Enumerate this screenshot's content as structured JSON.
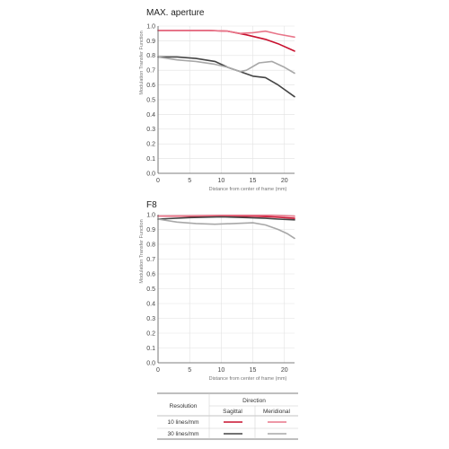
{
  "chart_data": [
    {
      "type": "line",
      "title": "MAX. aperture",
      "xlabel": "Distance from center of frame (mm)",
      "ylabel": "Modulation Transfer Function",
      "xlim": [
        0,
        21.6
      ],
      "ylim": [
        0,
        1.0
      ],
      "xticks": [
        0,
        5,
        10,
        15,
        20
      ],
      "yticks": [
        0,
        0.1,
        0.2,
        0.3,
        0.4,
        0.5,
        0.6,
        0.7,
        0.8,
        0.9,
        1.0
      ],
      "grid": true,
      "series": [
        {
          "key": "10_sagittal",
          "color": "#c8102e",
          "x": [
            0,
            4,
            8,
            11,
            14,
            17,
            19,
            21.6
          ],
          "y": [
            0.97,
            0.97,
            0.97,
            0.965,
            0.94,
            0.91,
            0.88,
            0.83
          ]
        },
        {
          "key": "10_meridional",
          "color": "#e8768a",
          "x": [
            0,
            4,
            8,
            11,
            13,
            15,
            17,
            19,
            21.6
          ],
          "y": [
            0.97,
            0.97,
            0.97,
            0.965,
            0.95,
            0.955,
            0.965,
            0.945,
            0.925
          ]
        },
        {
          "key": "30_sagittal",
          "color": "#444444",
          "x": [
            0,
            3,
            6,
            9,
            11,
            13,
            15,
            17,
            19,
            21.6
          ],
          "y": [
            0.79,
            0.79,
            0.78,
            0.76,
            0.72,
            0.69,
            0.66,
            0.65,
            0.6,
            0.52
          ]
        },
        {
          "key": "30_meridional",
          "color": "#a8a8a8",
          "x": [
            0,
            3,
            6,
            9,
            11,
            13,
            14,
            16,
            18,
            20,
            21.6
          ],
          "y": [
            0.79,
            0.77,
            0.76,
            0.74,
            0.72,
            0.69,
            0.7,
            0.75,
            0.76,
            0.72,
            0.68
          ]
        }
      ]
    },
    {
      "type": "line",
      "title": "F8",
      "xlabel": "Distance from center of frame (mm)",
      "ylabel": "Modulation Transfer Function",
      "xlim": [
        0,
        21.6
      ],
      "ylim": [
        0,
        1.0
      ],
      "xticks": [
        0,
        5,
        10,
        15,
        20
      ],
      "yticks": [
        0,
        0.1,
        0.2,
        0.3,
        0.4,
        0.5,
        0.6,
        0.7,
        0.8,
        0.9,
        1.0
      ],
      "grid": true,
      "series": [
        {
          "key": "10_sagittal",
          "color": "#c8102e",
          "x": [
            0,
            5,
            10,
            15,
            18,
            21.6
          ],
          "y": [
            0.99,
            0.99,
            0.99,
            0.99,
            0.985,
            0.975
          ]
        },
        {
          "key": "10_meridional",
          "color": "#e8768a",
          "x": [
            0,
            5,
            10,
            15,
            18,
            21.6
          ],
          "y": [
            0.99,
            0.992,
            0.995,
            0.995,
            0.995,
            0.99
          ]
        },
        {
          "key": "30_sagittal",
          "color": "#444444",
          "x": [
            0,
            5,
            10,
            14,
            17,
            19,
            21.6
          ],
          "y": [
            0.97,
            0.98,
            0.985,
            0.98,
            0.975,
            0.97,
            0.965
          ]
        },
        {
          "key": "30_meridional",
          "color": "#a8a8a8",
          "x": [
            0,
            3,
            6,
            9,
            12,
            15,
            17,
            19,
            20.5,
            21.6
          ],
          "y": [
            0.97,
            0.95,
            0.94,
            0.935,
            0.94,
            0.945,
            0.93,
            0.9,
            0.87,
            0.84
          ]
        }
      ]
    }
  ],
  "legend": {
    "resolution_header": "Resolution",
    "direction_header": "Direction",
    "sagittal_header": "Sagittal",
    "meridional_header": "Meridional",
    "rows": [
      {
        "label": "10 lines/mm",
        "sagittal_color": "#c8102e",
        "meridional_color": "#e8768a"
      },
      {
        "label": "30 lines/mm",
        "sagittal_color": "#444444",
        "meridional_color": "#a8a8a8"
      }
    ]
  }
}
